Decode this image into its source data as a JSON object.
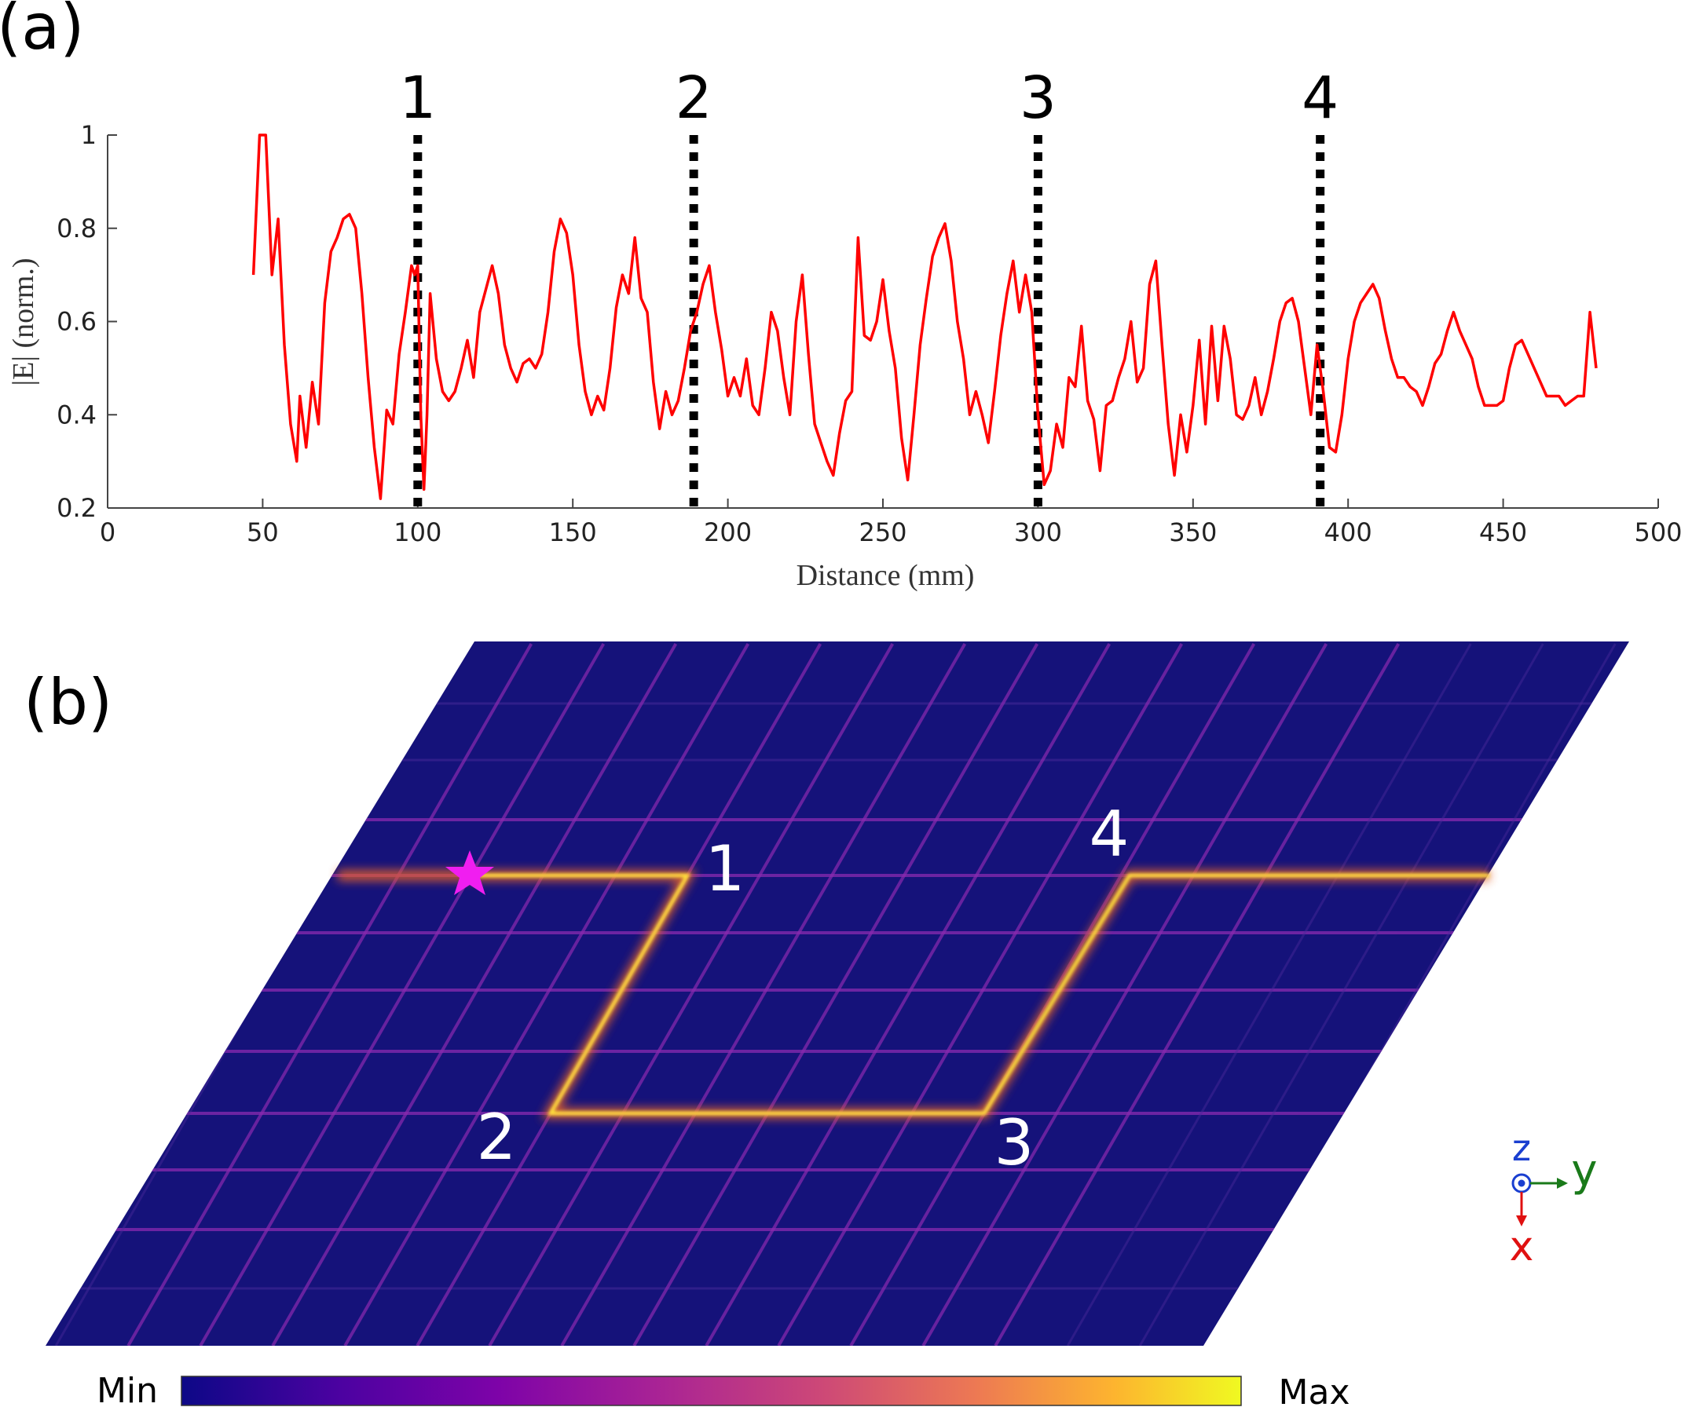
{
  "panel_labels": [
    "(a)",
    "(b)"
  ],
  "chart_data": {
    "type": "line",
    "x_label": "Distance (mm)",
    "y_label": "|E| (norm.)",
    "color": "#ff0000",
    "xlim": [
      0,
      500
    ],
    "xticks": [
      0,
      50,
      100,
      150,
      200,
      250,
      300,
      350,
      400,
      450,
      500
    ],
    "ylim": [
      0.2,
      1
    ],
    "yticks": [
      0.2,
      0.4,
      0.6,
      0.8,
      1
    ],
    "markers": [
      {
        "x": 100,
        "label": "1"
      },
      {
        "x": 189,
        "label": "2"
      },
      {
        "x": 300,
        "label": "3"
      },
      {
        "x": 391,
        "label": "4"
      }
    ],
    "x": [
      47,
      49,
      51,
      53,
      55,
      57,
      59,
      61,
      62,
      64,
      66,
      68,
      70,
      72,
      74,
      76,
      78,
      80,
      82,
      84,
      86,
      88,
      90,
      92,
      94,
      96,
      98,
      99,
      100,
      101,
      102,
      103,
      104,
      106,
      108,
      110,
      112,
      114,
      116,
      118,
      120,
      122,
      124,
      126,
      128,
      130,
      132,
      134,
      136,
      138,
      140,
      142,
      144,
      146,
      148,
      150,
      152,
      154,
      156,
      158,
      160,
      162,
      164,
      166,
      168,
      170,
      172,
      174,
      176,
      178,
      180,
      182,
      184,
      186,
      188,
      190,
      192,
      194,
      196,
      198,
      200,
      202,
      204,
      206,
      208,
      210,
      212,
      214,
      216,
      218,
      220,
      222,
      224,
      226,
      228,
      230,
      232,
      234,
      236,
      238,
      240,
      242,
      244,
      246,
      248,
      250,
      252,
      254,
      256,
      258,
      260,
      262,
      264,
      266,
      268,
      270,
      272,
      274,
      276,
      278,
      280,
      282,
      284,
      286,
      288,
      290,
      292,
      294,
      296,
      298,
      300,
      302,
      304,
      306,
      308,
      310,
      312,
      314,
      316,
      318,
      320,
      322,
      324,
      326,
      328,
      330,
      332,
      334,
      336,
      338,
      340,
      342,
      344,
      346,
      348,
      350,
      352,
      354,
      356,
      358,
      360,
      362,
      364,
      366,
      368,
      370,
      372,
      374,
      376,
      378,
      380,
      382,
      384,
      386,
      388,
      390,
      392,
      394,
      396,
      398,
      400,
      402,
      404,
      406,
      408,
      410,
      412,
      414,
      416,
      418,
      420,
      422,
      424,
      426,
      428,
      430,
      432,
      434,
      436,
      438,
      440,
      442,
      444,
      446,
      448,
      450,
      452,
      454,
      456,
      458,
      460,
      462,
      464,
      466,
      468,
      470,
      472,
      474,
      476,
      478,
      480
    ],
    "values": [
      0.7,
      1.0,
      1.0,
      0.7,
      0.82,
      0.55,
      0.38,
      0.3,
      0.44,
      0.33,
      0.47,
      0.38,
      0.64,
      0.75,
      0.78,
      0.82,
      0.83,
      0.8,
      0.66,
      0.48,
      0.33,
      0.22,
      0.41,
      0.38,
      0.53,
      0.62,
      0.72,
      0.7,
      0.72,
      0.4,
      0.24,
      0.4,
      0.66,
      0.52,
      0.45,
      0.43,
      0.45,
      0.5,
      0.56,
      0.48,
      0.62,
      0.67,
      0.72,
      0.66,
      0.55,
      0.5,
      0.47,
      0.51,
      0.52,
      0.5,
      0.53,
      0.62,
      0.75,
      0.82,
      0.79,
      0.7,
      0.55,
      0.45,
      0.4,
      0.44,
      0.41,
      0.5,
      0.63,
      0.7,
      0.66,
      0.78,
      0.65,
      0.62,
      0.47,
      0.37,
      0.45,
      0.4,
      0.43,
      0.5,
      0.58,
      0.62,
      0.68,
      0.72,
      0.62,
      0.54,
      0.44,
      0.48,
      0.44,
      0.52,
      0.42,
      0.4,
      0.5,
      0.62,
      0.58,
      0.48,
      0.4,
      0.6,
      0.7,
      0.53,
      0.38,
      0.34,
      0.3,
      0.27,
      0.36,
      0.43,
      0.45,
      0.78,
      0.57,
      0.56,
      0.6,
      0.69,
      0.58,
      0.5,
      0.35,
      0.26,
      0.4,
      0.55,
      0.65,
      0.74,
      0.78,
      0.81,
      0.73,
      0.6,
      0.52,
      0.4,
      0.45,
      0.4,
      0.34,
      0.45,
      0.57,
      0.66,
      0.73,
      0.62,
      0.7,
      0.62,
      0.4,
      0.25,
      0.28,
      0.38,
      0.33,
      0.48,
      0.46,
      0.59,
      0.43,
      0.39,
      0.28,
      0.42,
      0.43,
      0.48,
      0.52,
      0.6,
      0.47,
      0.5,
      0.68,
      0.73,
      0.55,
      0.38,
      0.27,
      0.4,
      0.32,
      0.42,
      0.56,
      0.38,
      0.59,
      0.43,
      0.59,
      0.52,
      0.4,
      0.39,
      0.42,
      0.48,
      0.4,
      0.45,
      0.52,
      0.6,
      0.64,
      0.65,
      0.6,
      0.5,
      0.4,
      0.55,
      0.45,
      0.33,
      0.32,
      0.4,
      0.52,
      0.6,
      0.64,
      0.66,
      0.68,
      0.65,
      0.58,
      0.52,
      0.48,
      0.48,
      0.46,
      0.45,
      0.42,
      0.46,
      0.51,
      0.53,
      0.58,
      0.62,
      0.58,
      0.55,
      0.52,
      0.46,
      0.42,
      0.42,
      0.42,
      0.43,
      0.5,
      0.55,
      0.56,
      0.53,
      0.5,
      0.47,
      0.44,
      0.44,
      0.44,
      0.42,
      0.43,
      0.44,
      0.44,
      0.62,
      0.5
    ]
  },
  "field_map": {
    "corner_labels": [
      "1",
      "2",
      "3",
      "4"
    ],
    "colorbar_min": "Min",
    "colorbar_max": "Max",
    "axis_labels": {
      "z": "z",
      "y": "y",
      "x": "x"
    }
  }
}
